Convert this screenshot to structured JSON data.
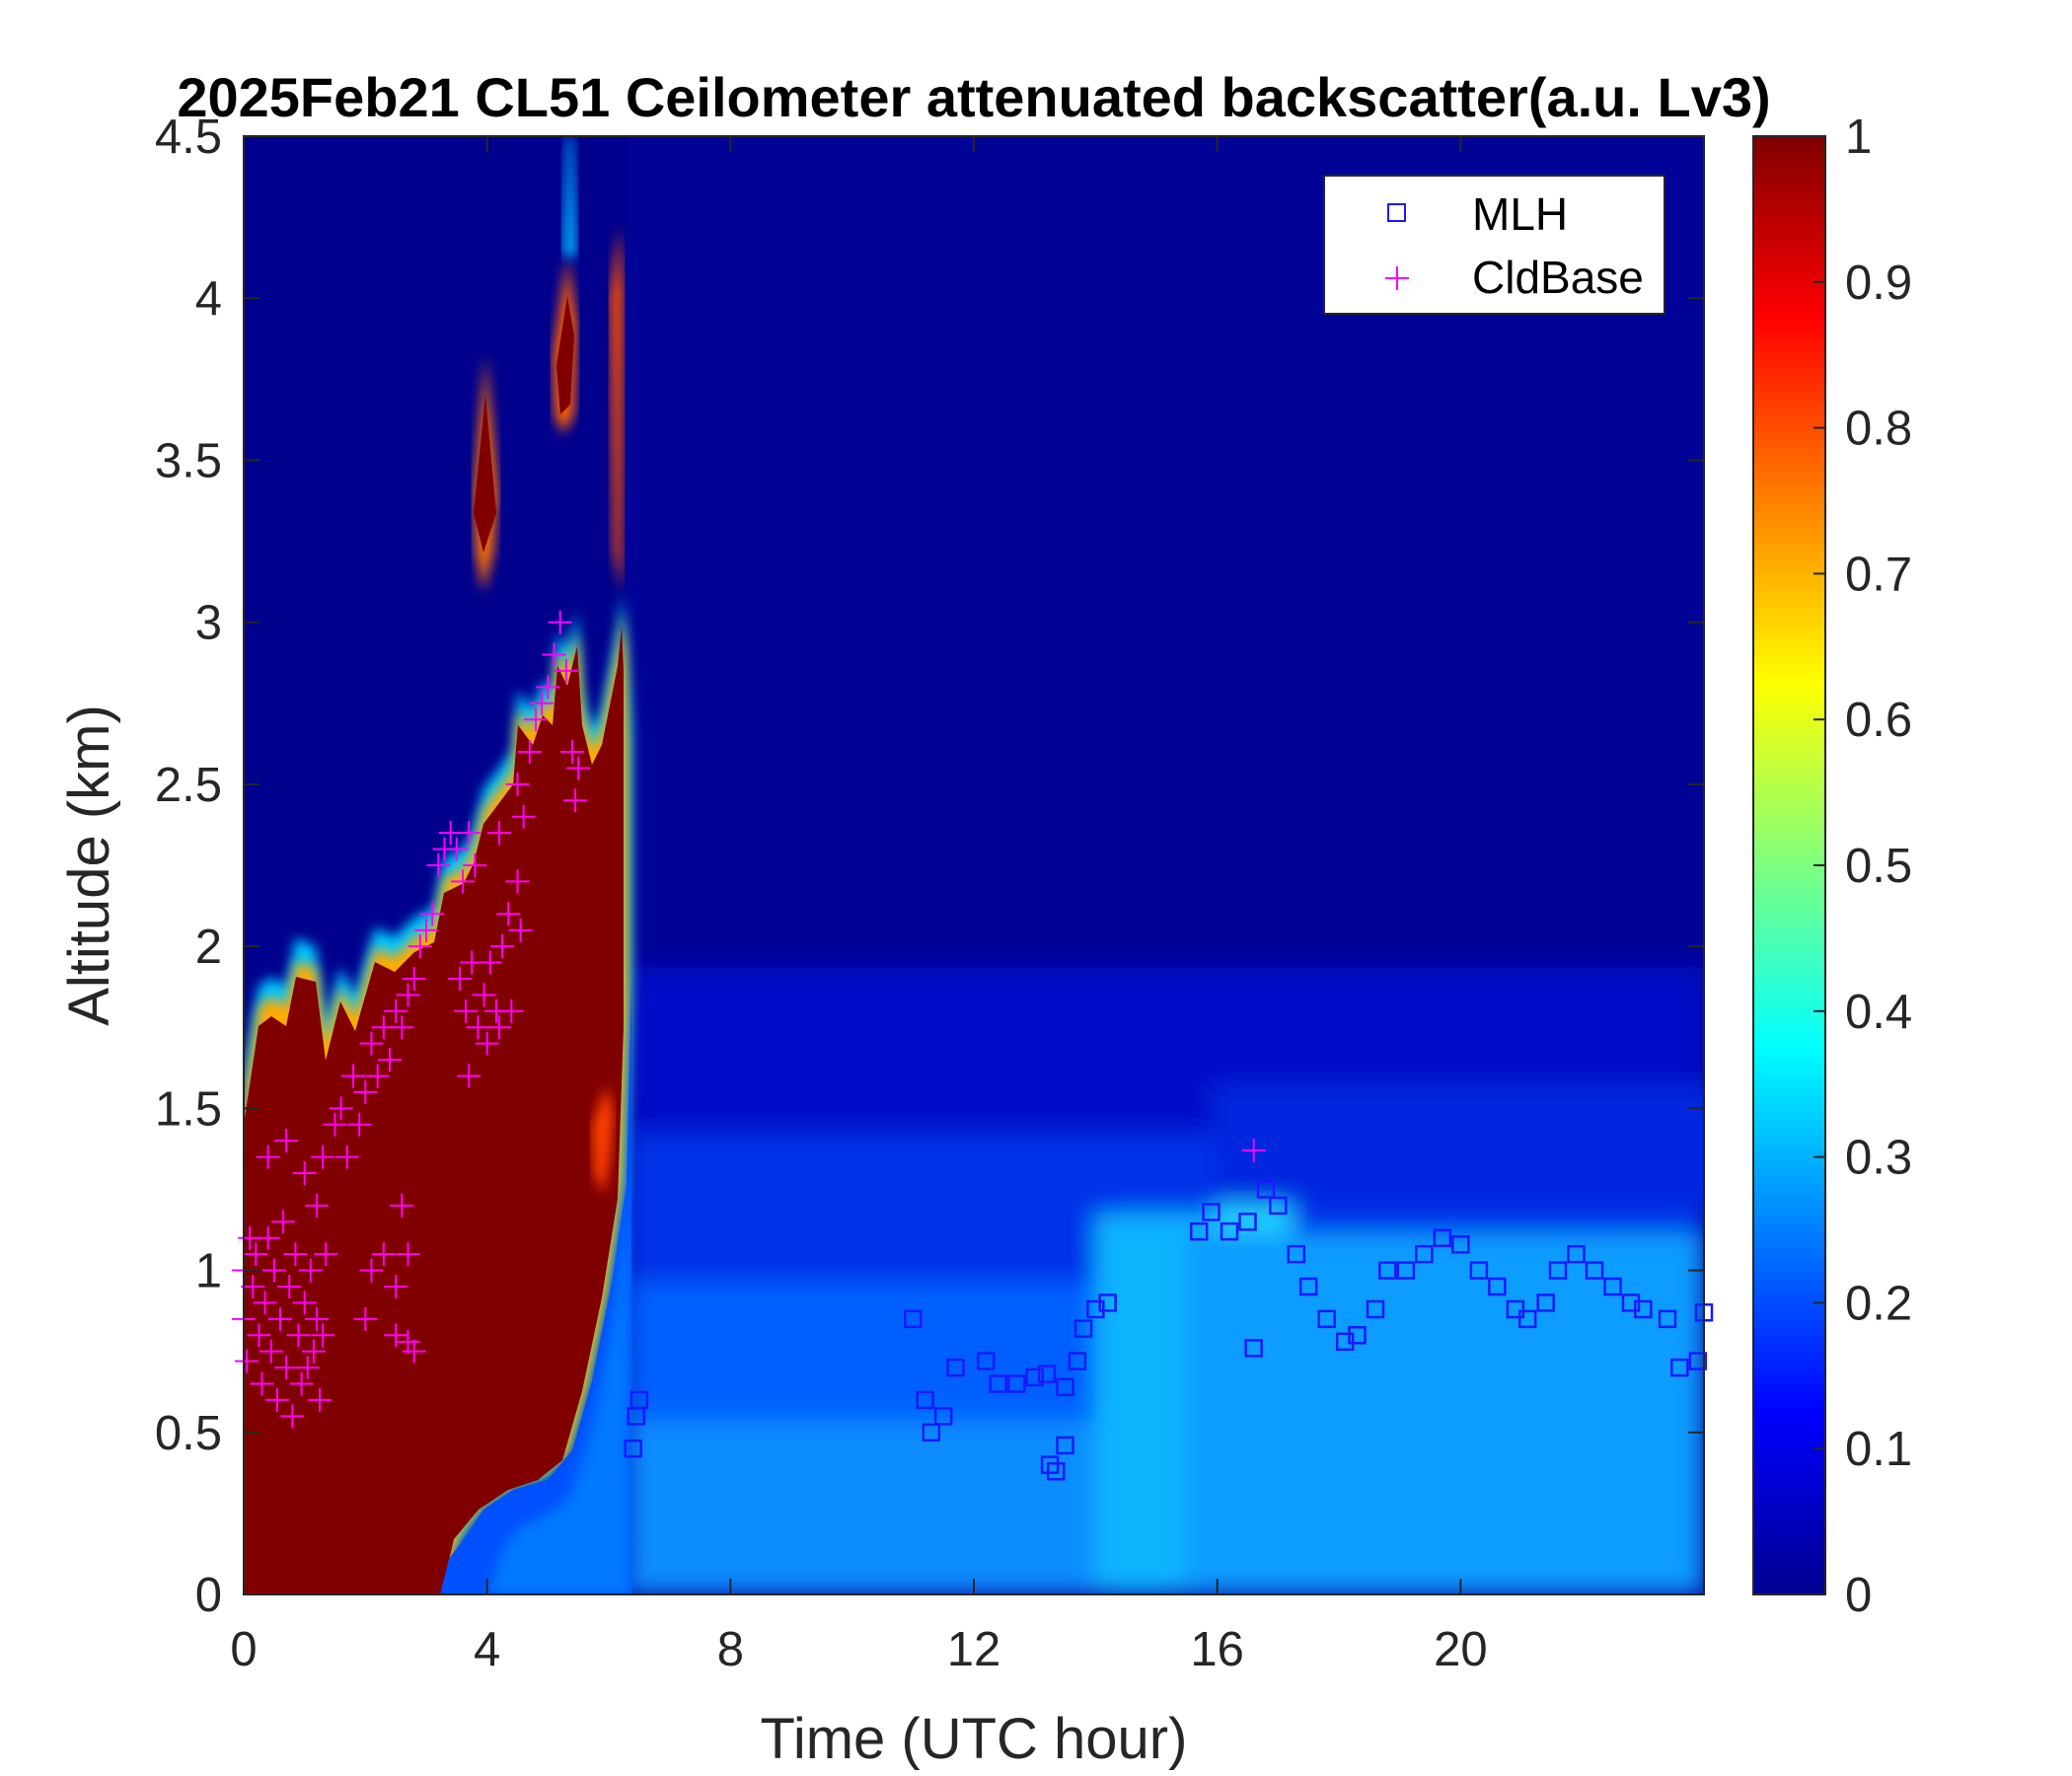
{
  "chart_data": {
    "type": "heatmap",
    "title": "2025Feb21 CL51 Ceilometer attenuated backscatter(a.u. Lv3)",
    "xlabel": "Time (UTC hour)",
    "ylabel": "Altitude (km)",
    "xlim": [
      0,
      24
    ],
    "ylim": [
      0,
      4.5
    ],
    "xticks": [
      "0",
      "4",
      "8",
      "12",
      "16",
      "20"
    ],
    "xtick_values": [
      0,
      4,
      8,
      12,
      16,
      20
    ],
    "yticks": [
      "0",
      "0.5",
      "1",
      "1.5",
      "2",
      "2.5",
      "3",
      "3.5",
      "4",
      "4.5"
    ],
    "ytick_values": [
      0,
      0.5,
      1,
      1.5,
      2,
      2.5,
      3,
      3.5,
      4,
      4.5
    ],
    "colorbar": {
      "colormap": "jet",
      "range": [
        0,
        1
      ],
      "ticks": [
        "0",
        "0.1",
        "0.2",
        "0.3",
        "0.4",
        "0.5",
        "0.6",
        "0.7",
        "0.8",
        "0.9",
        "1"
      ],
      "tick_values": [
        0,
        0.1,
        0.2,
        0.3,
        0.4,
        0.5,
        0.6,
        0.7,
        0.8,
        0.9,
        1
      ]
    },
    "legend": {
      "placement": "top-right",
      "entries": [
        {
          "label": "MLH",
          "marker": "square",
          "color": "#1a1aff"
        },
        {
          "label": "CldBase",
          "marker": "plus",
          "color": "#ff00ff"
        }
      ]
    },
    "series": [
      {
        "name": "MLH",
        "marker": "square",
        "color": "#1a1aff",
        "points": [
          [
            6.4,
            0.45
          ],
          [
            6.45,
            0.55
          ],
          [
            6.5,
            0.6
          ],
          [
            11.0,
            0.85
          ],
          [
            11.2,
            0.6
          ],
          [
            11.3,
            0.5
          ],
          [
            11.5,
            0.55
          ],
          [
            11.7,
            0.7
          ],
          [
            12.2,
            0.72
          ],
          [
            12.4,
            0.65
          ],
          [
            12.7,
            0.65
          ],
          [
            13.0,
            0.67
          ],
          [
            13.2,
            0.68
          ],
          [
            13.25,
            0.4
          ],
          [
            13.35,
            0.38
          ],
          [
            13.5,
            0.46
          ],
          [
            13.5,
            0.64
          ],
          [
            13.7,
            0.72
          ],
          [
            13.8,
            0.82
          ],
          [
            14.0,
            0.88
          ],
          [
            14.2,
            0.9
          ],
          [
            15.7,
            1.12
          ],
          [
            15.9,
            1.18
          ],
          [
            16.2,
            1.12
          ],
          [
            16.5,
            1.15
          ],
          [
            16.6,
            0.76
          ],
          [
            16.8,
            1.25
          ],
          [
            17.0,
            1.2
          ],
          [
            17.3,
            1.05
          ],
          [
            17.5,
            0.95
          ],
          [
            17.8,
            0.85
          ],
          [
            18.1,
            0.78
          ],
          [
            18.3,
            0.8
          ],
          [
            18.6,
            0.88
          ],
          [
            18.8,
            1.0
          ],
          [
            19.1,
            1.0
          ],
          [
            19.4,
            1.05
          ],
          [
            19.7,
            1.1
          ],
          [
            20.0,
            1.08
          ],
          [
            20.3,
            1.0
          ],
          [
            20.6,
            0.95
          ],
          [
            20.9,
            0.88
          ],
          [
            21.1,
            0.85
          ],
          [
            21.4,
            0.9
          ],
          [
            21.6,
            1.0
          ],
          [
            21.9,
            1.05
          ],
          [
            22.2,
            1.0
          ],
          [
            22.5,
            0.95
          ],
          [
            22.8,
            0.9
          ],
          [
            23.0,
            0.88
          ],
          [
            23.4,
            0.85
          ],
          [
            23.6,
            0.7
          ],
          [
            23.9,
            0.72
          ],
          [
            24.0,
            0.87
          ]
        ]
      },
      {
        "name": "CldBase",
        "marker": "plus",
        "color": "#ff00ff",
        "points": [
          [
            0.0,
            1.0
          ],
          [
            0.0,
            0.85
          ],
          [
            0.05,
            0.72
          ],
          [
            0.1,
            1.1
          ],
          [
            0.15,
            0.95
          ],
          [
            0.2,
            1.05
          ],
          [
            0.25,
            0.8
          ],
          [
            0.3,
            0.65
          ],
          [
            0.35,
            0.9
          ],
          [
            0.4,
            1.1
          ],
          [
            0.45,
            0.75
          ],
          [
            0.5,
            1.0
          ],
          [
            0.55,
            0.6
          ],
          [
            0.6,
            0.85
          ],
          [
            0.65,
            1.15
          ],
          [
            0.7,
            0.7
          ],
          [
            0.75,
            0.95
          ],
          [
            0.8,
            0.55
          ],
          [
            0.85,
            1.05
          ],
          [
            0.9,
            0.8
          ],
          [
            0.95,
            0.65
          ],
          [
            1.0,
            0.9
          ],
          [
            1.05,
            0.7
          ],
          [
            1.1,
            1.0
          ],
          [
            1.15,
            0.75
          ],
          [
            1.2,
            0.85
          ],
          [
            1.25,
            0.6
          ],
          [
            1.3,
            0.8
          ],
          [
            1.35,
            1.05
          ],
          [
            1.2,
            1.2
          ],
          [
            0.4,
            1.35
          ],
          [
            0.7,
            1.4
          ],
          [
            1.0,
            1.3
          ],
          [
            1.3,
            1.35
          ],
          [
            1.5,
            1.45
          ],
          [
            1.6,
            1.5
          ],
          [
            1.7,
            1.35
          ],
          [
            1.8,
            1.6
          ],
          [
            1.9,
            1.45
          ],
          [
            2.0,
            1.55
          ],
          [
            2.1,
            1.7
          ],
          [
            2.2,
            1.6
          ],
          [
            2.3,
            1.75
          ],
          [
            2.4,
            1.65
          ],
          [
            2.5,
            1.8
          ],
          [
            2.6,
            1.75
          ],
          [
            2.7,
            1.85
          ],
          [
            2.8,
            1.9
          ],
          [
            2.9,
            2.0
          ],
          [
            3.0,
            2.05
          ],
          [
            3.1,
            2.1
          ],
          [
            3.2,
            2.25
          ],
          [
            3.3,
            2.3
          ],
          [
            3.4,
            2.35
          ],
          [
            3.5,
            2.3
          ],
          [
            3.6,
            2.2
          ],
          [
            3.7,
            2.35
          ],
          [
            3.8,
            2.25
          ],
          [
            3.55,
            1.9
          ],
          [
            3.65,
            1.8
          ],
          [
            3.75,
            1.95
          ],
          [
            3.85,
            1.75
          ],
          [
            3.95,
            1.85
          ],
          [
            4.05,
            1.95
          ],
          [
            4.15,
            1.8
          ],
          [
            4.25,
            2.0
          ],
          [
            4.35,
            2.1
          ],
          [
            3.7,
            1.6
          ],
          [
            4.0,
            1.7
          ],
          [
            4.2,
            1.75
          ],
          [
            4.4,
            1.8
          ],
          [
            4.5,
            2.5
          ],
          [
            4.6,
            2.4
          ],
          [
            4.7,
            2.6
          ],
          [
            4.8,
            2.7
          ],
          [
            4.9,
            2.75
          ],
          [
            5.0,
            2.8
          ],
          [
            5.1,
            2.9
          ],
          [
            5.2,
            3.0
          ],
          [
            5.3,
            2.85
          ],
          [
            5.4,
            2.6
          ],
          [
            5.45,
            2.45
          ],
          [
            5.5,
            2.55
          ],
          [
            4.5,
            2.2
          ],
          [
            4.55,
            2.05
          ],
          [
            4.2,
            2.35
          ],
          [
            2.0,
            0.85
          ],
          [
            2.1,
            1.0
          ],
          [
            2.3,
            1.05
          ],
          [
            2.5,
            0.95
          ],
          [
            2.5,
            0.8
          ],
          [
            2.6,
            1.2
          ],
          [
            2.7,
            0.78
          ],
          [
            2.7,
            1.05
          ],
          [
            2.8,
            0.75
          ],
          [
            16.6,
            1.37
          ]
        ]
      }
    ],
    "field": {
      "description_points": [
        "high backscatter (1.0) from 0 to ~6.2 h below a rising cloud layer up to ~3.3 km",
        "background ~0.02-0.05 above 1.5 km after 6.5 h",
        "boundary layer ~0.15-0.3 below 1 km after 6.5 h"
      ]
    }
  }
}
